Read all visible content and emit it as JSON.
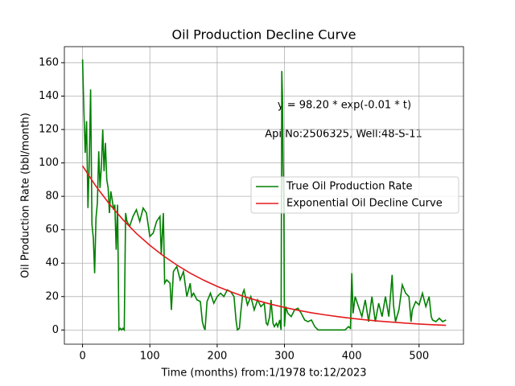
{
  "chart_data": {
    "type": "line",
    "title": "Oil Production Decline Curve",
    "xlabel": "Time (months) from:1/1978 to:12/2023",
    "ylabel": "Oil Production Rate (bbl/month)",
    "annotations": [
      "y = 98.20 * exp(-0.01 * t)",
      "Api No:2506325, Well:48-S-11"
    ],
    "xlim": [
      -27,
      566
    ],
    "ylim": [
      -8.5,
      169.6
    ],
    "xticks": [
      0,
      100,
      200,
      300,
      400,
      500
    ],
    "yticks": [
      0,
      20,
      40,
      60,
      80,
      100,
      120,
      140,
      160
    ],
    "grid": true,
    "legend": "center right",
    "series": [
      {
        "name": "True Oil Production Rate",
        "color": "#008000",
        "x": [
          0,
          2,
          4,
          6,
          8,
          10,
          12,
          14,
          16,
          18,
          20,
          22,
          24,
          26,
          28,
          30,
          32,
          34,
          36,
          38,
          40,
          42,
          44,
          46,
          48,
          50,
          52,
          54,
          56,
          58,
          60,
          62,
          64,
          66,
          70,
          75,
          80,
          85,
          90,
          95,
          100,
          105,
          110,
          115,
          117,
          120,
          122,
          125,
          130,
          132,
          135,
          140,
          145,
          150,
          155,
          160,
          162,
          165,
          170,
          175,
          178,
          180,
          182,
          185,
          190,
          195,
          200,
          205,
          210,
          215,
          220,
          225,
          228,
          230,
          233,
          235,
          238,
          240,
          245,
          250,
          255,
          260,
          265,
          270,
          273,
          275,
          278,
          280,
          283,
          285,
          288,
          290,
          293,
          295,
          296,
          297,
          298,
          299,
          300,
          302,
          305,
          310,
          315,
          320,
          325,
          330,
          335,
          340,
          345,
          350,
          360,
          370,
          380,
          390,
          395,
          398,
          400,
          402,
          405,
          410,
          415,
          420,
          425,
          430,
          435,
          440,
          445,
          450,
          455,
          460,
          462,
          465,
          470,
          475,
          480,
          485,
          488,
          490,
          495,
          500,
          505,
          510,
          515,
          518,
          520,
          525,
          530,
          535,
          540
        ],
        "values": [
          162,
          130,
          106,
          125,
          73,
          100,
          144,
          63,
          55,
          34,
          67,
          76,
          107,
          85,
          98,
          120,
          95,
          112,
          90,
          85,
          70,
          83,
          78,
          72,
          75,
          48,
          75,
          0,
          1,
          0,
          1,
          0,
          70,
          65,
          62,
          68,
          72,
          65,
          73,
          70,
          56,
          58,
          65,
          68,
          45,
          70,
          28,
          30,
          28,
          12,
          35,
          38,
          30,
          35,
          20,
          28,
          20,
          22,
          18,
          17,
          5,
          2,
          0,
          17,
          22,
          16,
          20,
          22,
          20,
          24,
          23,
          20,
          6,
          0,
          1,
          10,
          22,
          24,
          15,
          20,
          12,
          18,
          14,
          16,
          4,
          3,
          8,
          18,
          4,
          2,
          4,
          2,
          6,
          0,
          155,
          140,
          100,
          80,
          2,
          14,
          10,
          8,
          12,
          13,
          10,
          6,
          5,
          6,
          2,
          0,
          0,
          0,
          0,
          0,
          2,
          1,
          34,
          10,
          20,
          14,
          8,
          18,
          5,
          20,
          5,
          16,
          8,
          20,
          8,
          33,
          15,
          5,
          12,
          27,
          22,
          20,
          5,
          12,
          17,
          15,
          22,
          14,
          20,
          8,
          6,
          5,
          7,
          5,
          6
        ]
      },
      {
        "name": "Exponential Oil Decline Curve",
        "color": "#e41a1c",
        "x": [
          0,
          20,
          40,
          60,
          80,
          100,
          120,
          140,
          160,
          180,
          200,
          220,
          240,
          260,
          280,
          300,
          320,
          340,
          360,
          380,
          400,
          420,
          440,
          460,
          480,
          500,
          520,
          540
        ],
        "values": [
          98.2,
          86.0,
          75.4,
          66.0,
          57.8,
          50.7,
          44.4,
          38.9,
          34.0,
          29.8,
          26.1,
          22.9,
          20.0,
          17.6,
          15.4,
          13.5,
          11.8,
          10.3,
          9.06,
          7.94,
          6.95,
          6.09,
          5.33,
          4.67,
          4.09,
          3.58,
          3.14,
          2.75
        ]
      }
    ]
  }
}
